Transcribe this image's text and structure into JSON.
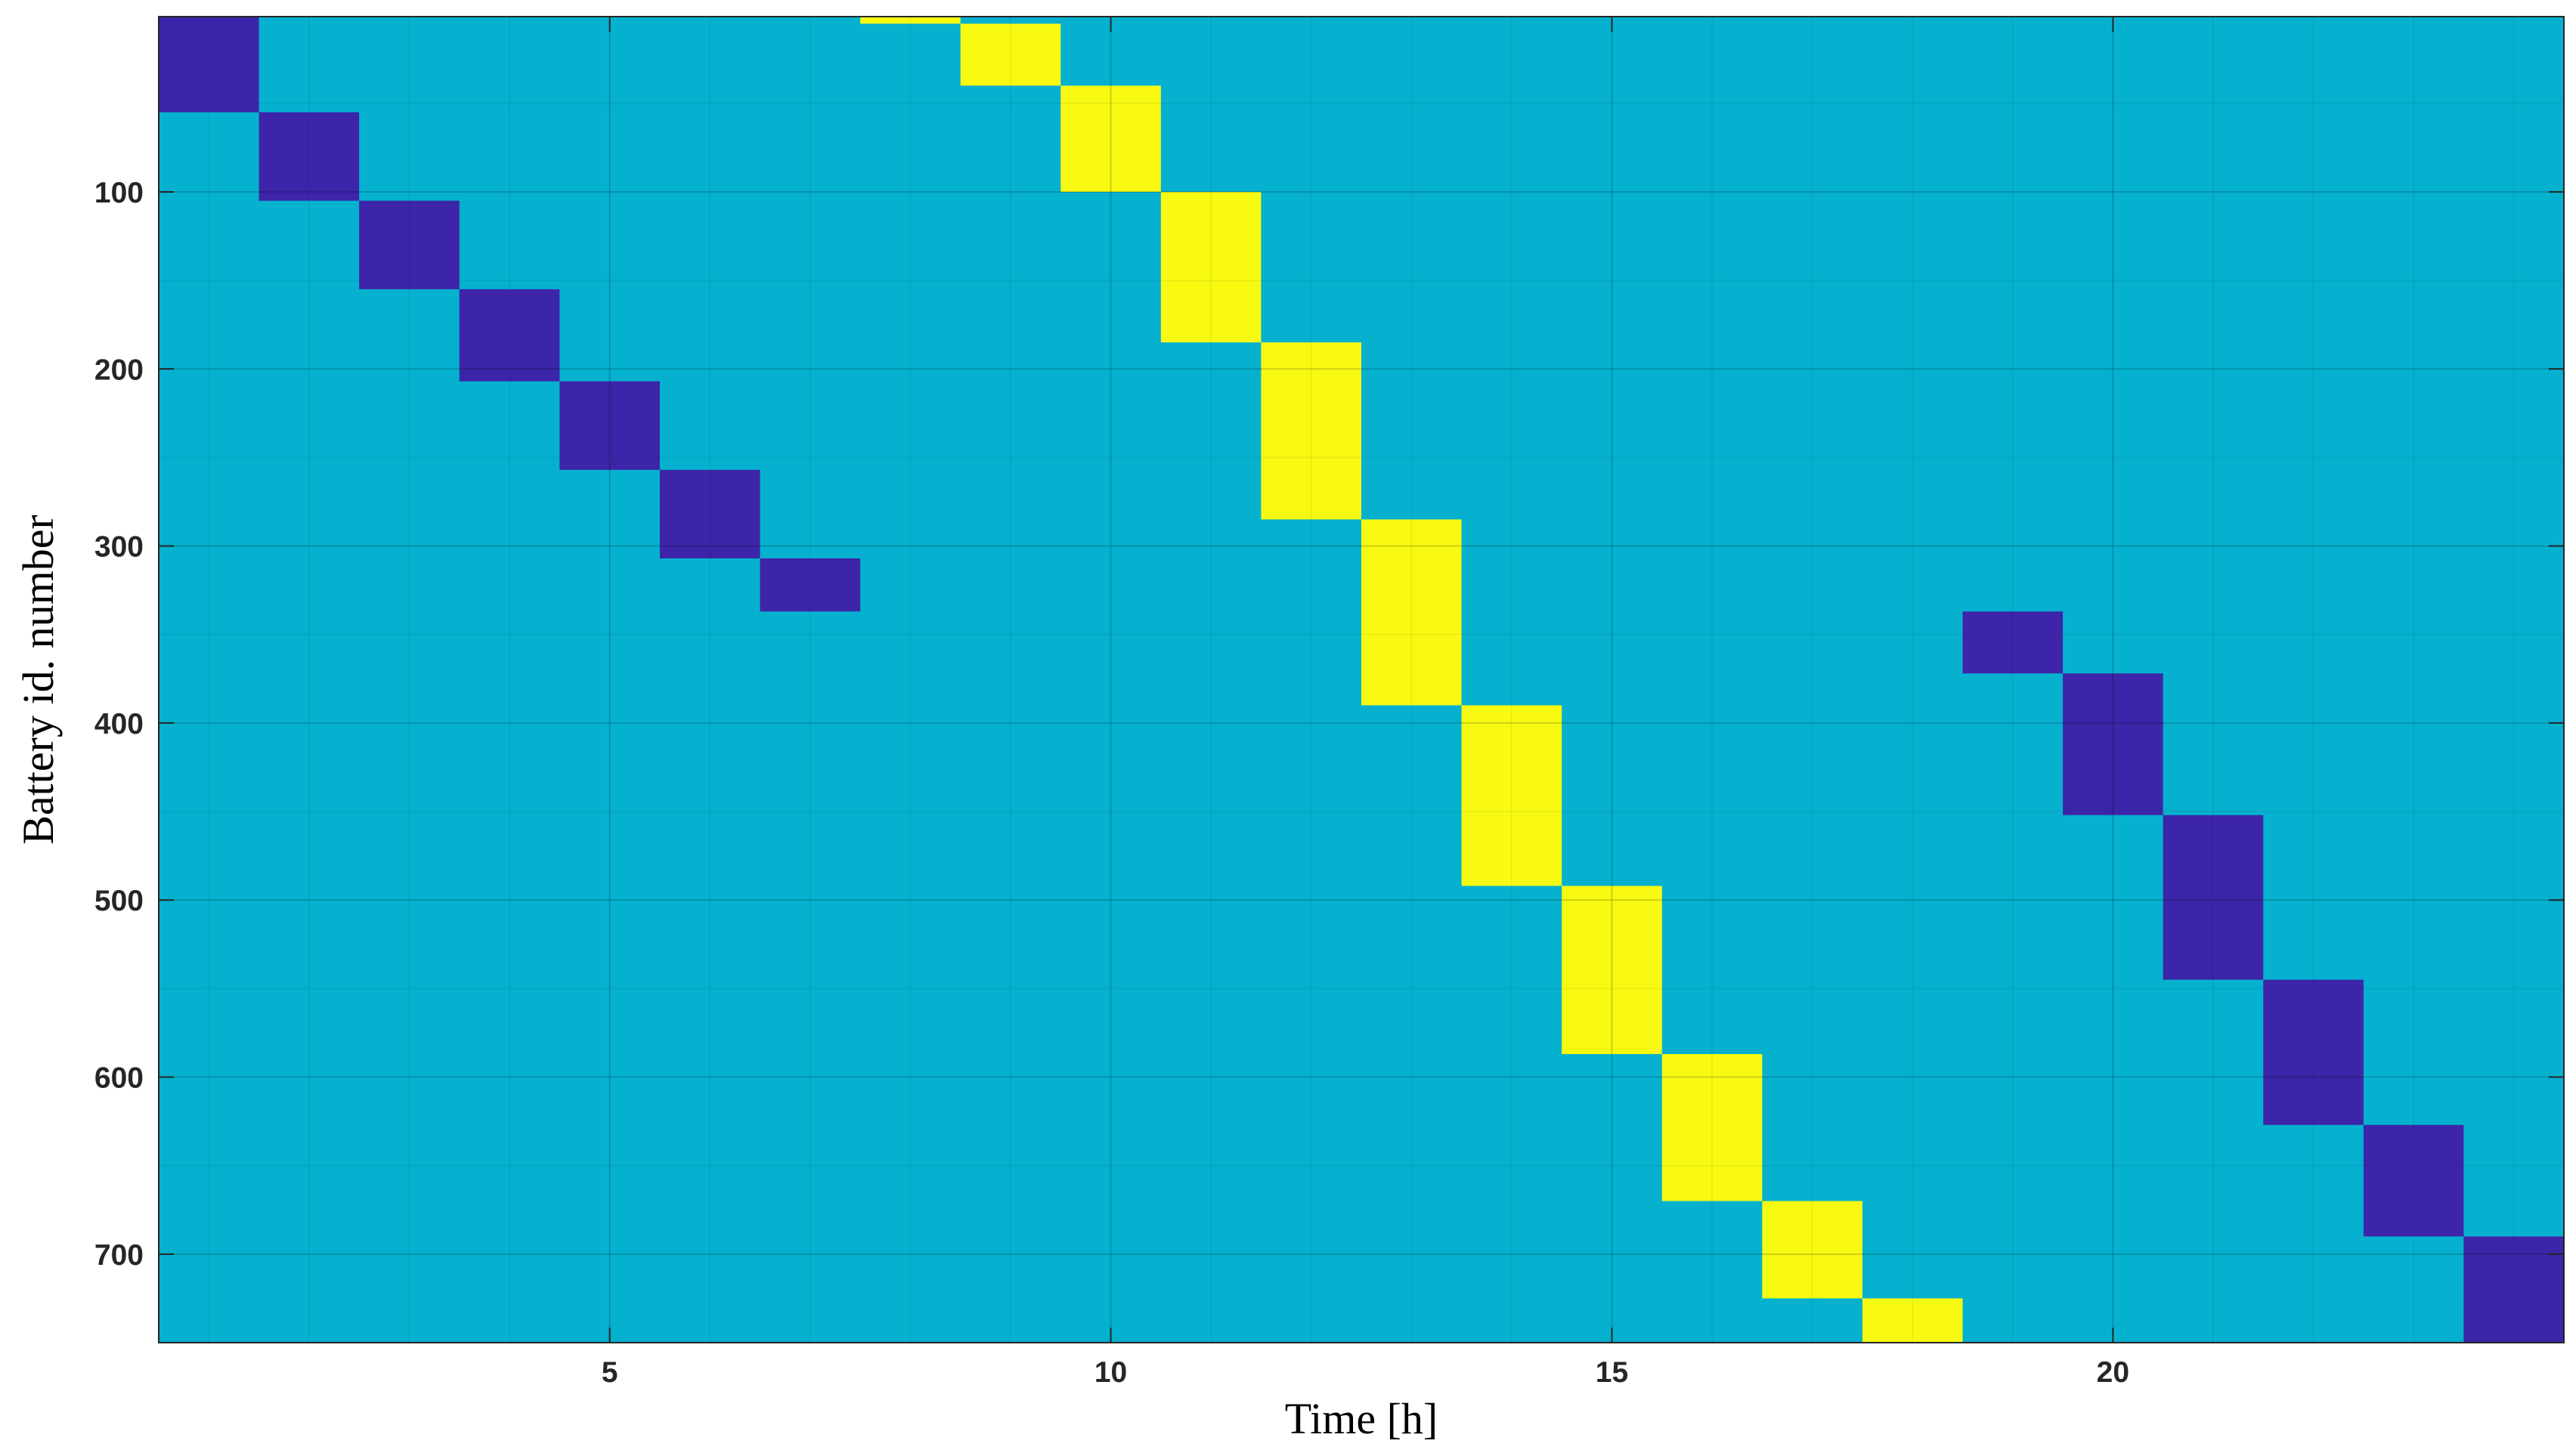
{
  "chart_data": {
    "type": "heatmap",
    "xlabel": "Time [h]",
    "ylabel": "Battery id. number",
    "x_range": [
      0.5,
      24.5
    ],
    "y_range": [
      1,
      750
    ],
    "y_direction": "reversed",
    "x_ticks": [
      5,
      10,
      15,
      20
    ],
    "x_tick_labels": [
      "5",
      "10",
      "15",
      "20"
    ],
    "y_ticks": [
      100,
      200,
      300,
      400,
      500,
      600,
      700
    ],
    "y_tick_labels": [
      "100",
      "200",
      "300",
      "400",
      "500",
      "600",
      "700"
    ],
    "grid": true,
    "colors": {
      "background_state": "#05B1CF",
      "discharging_state": "#3D25A9",
      "charging_state": "#F8FA12"
    },
    "cells": [
      {
        "hour": 1,
        "battery_from": 1,
        "battery_to": 55,
        "state": "discharging_state"
      },
      {
        "hour": 2,
        "battery_from": 55,
        "battery_to": 105,
        "state": "discharging_state"
      },
      {
        "hour": 3,
        "battery_from": 105,
        "battery_to": 155,
        "state": "discharging_state"
      },
      {
        "hour": 4,
        "battery_from": 155,
        "battery_to": 207,
        "state": "discharging_state"
      },
      {
        "hour": 5,
        "battery_from": 207,
        "battery_to": 257,
        "state": "discharging_state"
      },
      {
        "hour": 6,
        "battery_from": 257,
        "battery_to": 307,
        "state": "discharging_state"
      },
      {
        "hour": 7,
        "battery_from": 307,
        "battery_to": 337,
        "state": "discharging_state"
      },
      {
        "hour": 8,
        "battery_from": 1,
        "battery_to": 5,
        "state": "charging_state"
      },
      {
        "hour": 9,
        "battery_from": 5,
        "battery_to": 40,
        "state": "charging_state"
      },
      {
        "hour": 10,
        "battery_from": 40,
        "battery_to": 100,
        "state": "charging_state"
      },
      {
        "hour": 11,
        "battery_from": 100,
        "battery_to": 185,
        "state": "charging_state"
      },
      {
        "hour": 12,
        "battery_from": 185,
        "battery_to": 285,
        "state": "charging_state"
      },
      {
        "hour": 13,
        "battery_from": 285,
        "battery_to": 390,
        "state": "charging_state"
      },
      {
        "hour": 14,
        "battery_from": 390,
        "battery_to": 492,
        "state": "charging_state"
      },
      {
        "hour": 15,
        "battery_from": 492,
        "battery_to": 587,
        "state": "charging_state"
      },
      {
        "hour": 16,
        "battery_from": 587,
        "battery_to": 670,
        "state": "charging_state"
      },
      {
        "hour": 17,
        "battery_from": 670,
        "battery_to": 725,
        "state": "charging_state"
      },
      {
        "hour": 18,
        "battery_from": 725,
        "battery_to": 750,
        "state": "charging_state"
      },
      {
        "hour": 19,
        "battery_from": 337,
        "battery_to": 372,
        "state": "discharging_state"
      },
      {
        "hour": 20,
        "battery_from": 372,
        "battery_to": 452,
        "state": "discharging_state"
      },
      {
        "hour": 21,
        "battery_from": 452,
        "battery_to": 545,
        "state": "discharging_state"
      },
      {
        "hour": 22,
        "battery_from": 545,
        "battery_to": 627,
        "state": "discharging_state"
      },
      {
        "hour": 23,
        "battery_from": 627,
        "battery_to": 690,
        "state": "discharging_state"
      },
      {
        "hour": 24,
        "battery_from": 690,
        "battery_to": 750,
        "state": "discharging_state"
      }
    ]
  }
}
